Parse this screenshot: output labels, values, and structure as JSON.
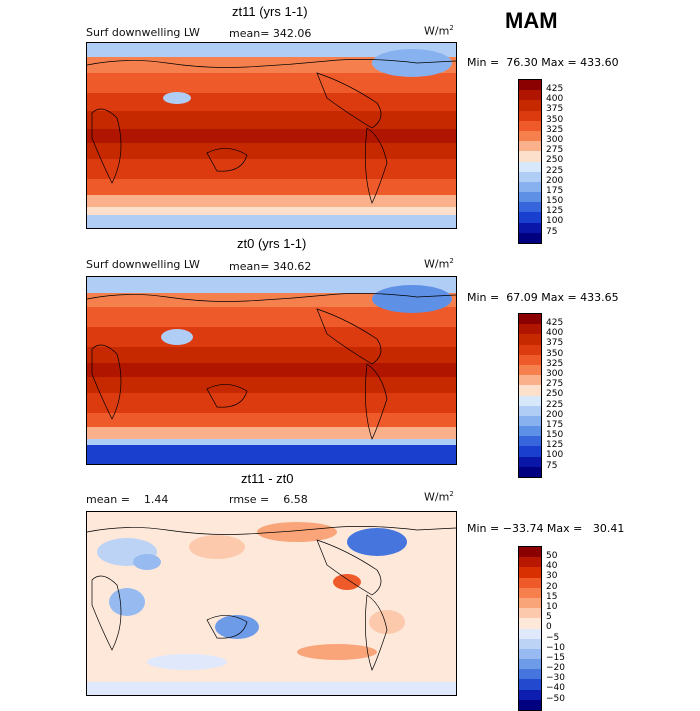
{
  "season": "MAM",
  "units_main": "W/m",
  "units_sup": "2",
  "panels": [
    {
      "title": "zt11 (yrs 1-1)",
      "variable": "Surf downwelling LW",
      "stat": "mean= 342.06",
      "minmax": "Min =  76.30 Max = 433.60",
      "colorbar_labels": [
        "425",
        "400",
        "375",
        "350",
        "325",
        "300",
        "275",
        "250",
        "225",
        "200",
        "175",
        "150",
        "125",
        "100",
        "75"
      ],
      "colorbar_colors": [
        "#8b0000",
        "#b01500",
        "#c62800",
        "#dc3b10",
        "#ee5a2a",
        "#f5804e",
        "#fab08a",
        "#fde0cc",
        "#d8e8fb",
        "#b0cdf5",
        "#88b2ef",
        "#5e90e6",
        "#3765db",
        "#1a3fcf",
        "#0a16a8",
        "#000080"
      ]
    },
    {
      "title": "zt0 (yrs 1-1)",
      "variable": "Surf downwelling LW",
      "stat": "mean= 340.62",
      "minmax": "Min =  67.09 Max = 433.65",
      "colorbar_labels": [
        "425",
        "400",
        "375",
        "350",
        "325",
        "300",
        "275",
        "250",
        "225",
        "200",
        "175",
        "150",
        "125",
        "100",
        "75"
      ],
      "colorbar_colors": [
        "#8b0000",
        "#b01500",
        "#c62800",
        "#dc3b10",
        "#ee5a2a",
        "#f5804e",
        "#fab08a",
        "#fde0cc",
        "#d8e8fb",
        "#b0cdf5",
        "#88b2ef",
        "#5e90e6",
        "#3765db",
        "#1a3fcf",
        "#0a16a8",
        "#000080"
      ]
    },
    {
      "title": "zt11 - zt0",
      "mean": "mean =    1.44",
      "rmse": "rmse =    6.58",
      "minmax": "Min = −33.74 Max =   30.41",
      "colorbar_labels": [
        "50",
        "40",
        "30",
        "20",
        "15",
        "10",
        "5",
        "0",
        "−5",
        "−10",
        "−15",
        "−20",
        "−30",
        "−40",
        "−50"
      ],
      "colorbar_colors": [
        "#8b0000",
        "#b81800",
        "#d83000",
        "#ee5a2a",
        "#f5804e",
        "#f9a579",
        "#fcc9ac",
        "#fde8da",
        "#dfe9fb",
        "#bcd3f6",
        "#97baf1",
        "#6d9be8",
        "#4575dd",
        "#2349cf",
        "#0c1db0",
        "#000080"
      ]
    }
  ]
}
